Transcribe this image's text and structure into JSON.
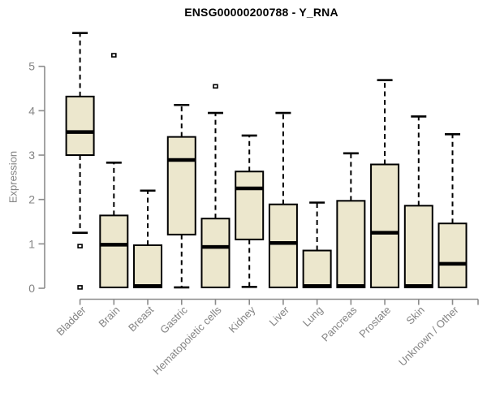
{
  "chart_data": {
    "type": "boxplot",
    "title": "ENSG00000200788 - Y_RNA",
    "ylabel": "Expression",
    "xlabel": "",
    "ylim": [
      0,
      5.8
    ],
    "yticks": [
      0,
      1,
      2,
      3,
      4,
      5
    ],
    "grid": false,
    "legend": null,
    "categories": [
      "Bladder",
      "Brain",
      "Breast",
      "Gastric",
      "Hematopoietic cells",
      "Kidney",
      "Liver",
      "Lung",
      "Pancreas",
      "Prostate",
      "Skin",
      "Unknown / Other"
    ],
    "boxes": [
      {
        "category": "Bladder",
        "whisker_low": 1.25,
        "q1": 3.0,
        "median": 3.52,
        "q3": 4.32,
        "whisker_high": 5.75,
        "outliers": [
          0.95,
          0.02
        ]
      },
      {
        "category": "Brain",
        "whisker_low": 0.02,
        "q1": 0.02,
        "median": 0.98,
        "q3": 1.64,
        "whisker_high": 2.83,
        "outliers": [
          5.25
        ]
      },
      {
        "category": "Breast",
        "whisker_low": 0.02,
        "q1": 0.02,
        "median": 0.05,
        "q3": 0.97,
        "whisker_high": 2.2,
        "outliers": []
      },
      {
        "category": "Gastric",
        "whisker_low": 0.02,
        "q1": 1.21,
        "median": 2.89,
        "q3": 3.41,
        "whisker_high": 4.13,
        "outliers": []
      },
      {
        "category": "Hematopoietic cells",
        "whisker_low": 0.02,
        "q1": 0.02,
        "median": 0.93,
        "q3": 1.57,
        "whisker_high": 3.95,
        "outliers": [
          4.55
        ]
      },
      {
        "category": "Kidney",
        "whisker_low": 0.03,
        "q1": 1.1,
        "median": 2.25,
        "q3": 2.63,
        "whisker_high": 3.44,
        "outliers": []
      },
      {
        "category": "Liver",
        "whisker_low": 0.02,
        "q1": 0.02,
        "median": 1.02,
        "q3": 1.89,
        "whisker_high": 3.95,
        "outliers": []
      },
      {
        "category": "Lung",
        "whisker_low": 0.02,
        "q1": 0.02,
        "median": 0.05,
        "q3": 0.85,
        "whisker_high": 1.93,
        "outliers": []
      },
      {
        "category": "Pancreas",
        "whisker_low": 0.02,
        "q1": 0.02,
        "median": 0.05,
        "q3": 1.97,
        "whisker_high": 3.04,
        "outliers": []
      },
      {
        "category": "Prostate",
        "whisker_low": 0.02,
        "q1": 0.02,
        "median": 1.25,
        "q3": 2.79,
        "whisker_high": 4.69,
        "outliers": []
      },
      {
        "category": "Skin",
        "whisker_low": 0.02,
        "q1": 0.02,
        "median": 0.05,
        "q3": 1.86,
        "whisker_high": 3.87,
        "outliers": []
      },
      {
        "category": "Unknown / Other",
        "whisker_low": 0.02,
        "q1": 0.02,
        "median": 0.55,
        "q3": 1.46,
        "whisker_high": 3.47,
        "outliers": []
      }
    ],
    "colors": {
      "box_fill": "#ECE7CD",
      "box_border": "#000000",
      "axis": "#8C8C8C",
      "tick_label": "#848484",
      "title": "#000000",
      "background": "#FFFFFF"
    }
  }
}
